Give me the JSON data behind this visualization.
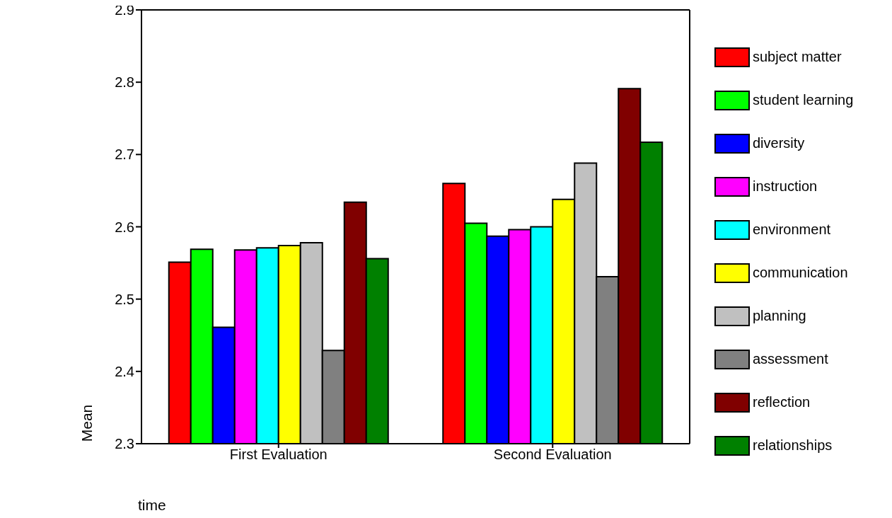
{
  "chart_data": {
    "type": "bar",
    "categories": [
      "First Evaluation",
      "Second Evaluation"
    ],
    "xlabel": "time",
    "ylabel": "Mean",
    "ylim": [
      2.3,
      2.9
    ],
    "yticks": [
      2.3,
      2.4,
      2.5,
      2.6,
      2.7,
      2.8,
      2.9
    ],
    "grid": false,
    "legend": "right",
    "series": [
      {
        "name": "subject matter",
        "color": "#ff0000",
        "values": [
          2.551,
          2.66
        ]
      },
      {
        "name": "student learning",
        "color": "#00ff00",
        "values": [
          2.569,
          2.605
        ]
      },
      {
        "name": "diversity",
        "color": "#0000ff",
        "values": [
          2.461,
          2.587
        ]
      },
      {
        "name": "instruction",
        "color": "#ff00ff",
        "values": [
          2.568,
          2.596
        ]
      },
      {
        "name": "environment",
        "color": "#00ffff",
        "values": [
          2.571,
          2.6
        ]
      },
      {
        "name": "communication",
        "color": "#ffff00",
        "values": [
          2.574,
          2.638
        ]
      },
      {
        "name": "planning",
        "color": "#c0c0c0",
        "values": [
          2.578,
          2.688
        ]
      },
      {
        "name": "assessment",
        "color": "#808080",
        "values": [
          2.429,
          2.531
        ]
      },
      {
        "name": "reflection",
        "color": "#800000",
        "values": [
          2.634,
          2.791
        ]
      },
      {
        "name": "relationships",
        "color": "#008000",
        "values": [
          2.556,
          2.717
        ]
      }
    ]
  }
}
